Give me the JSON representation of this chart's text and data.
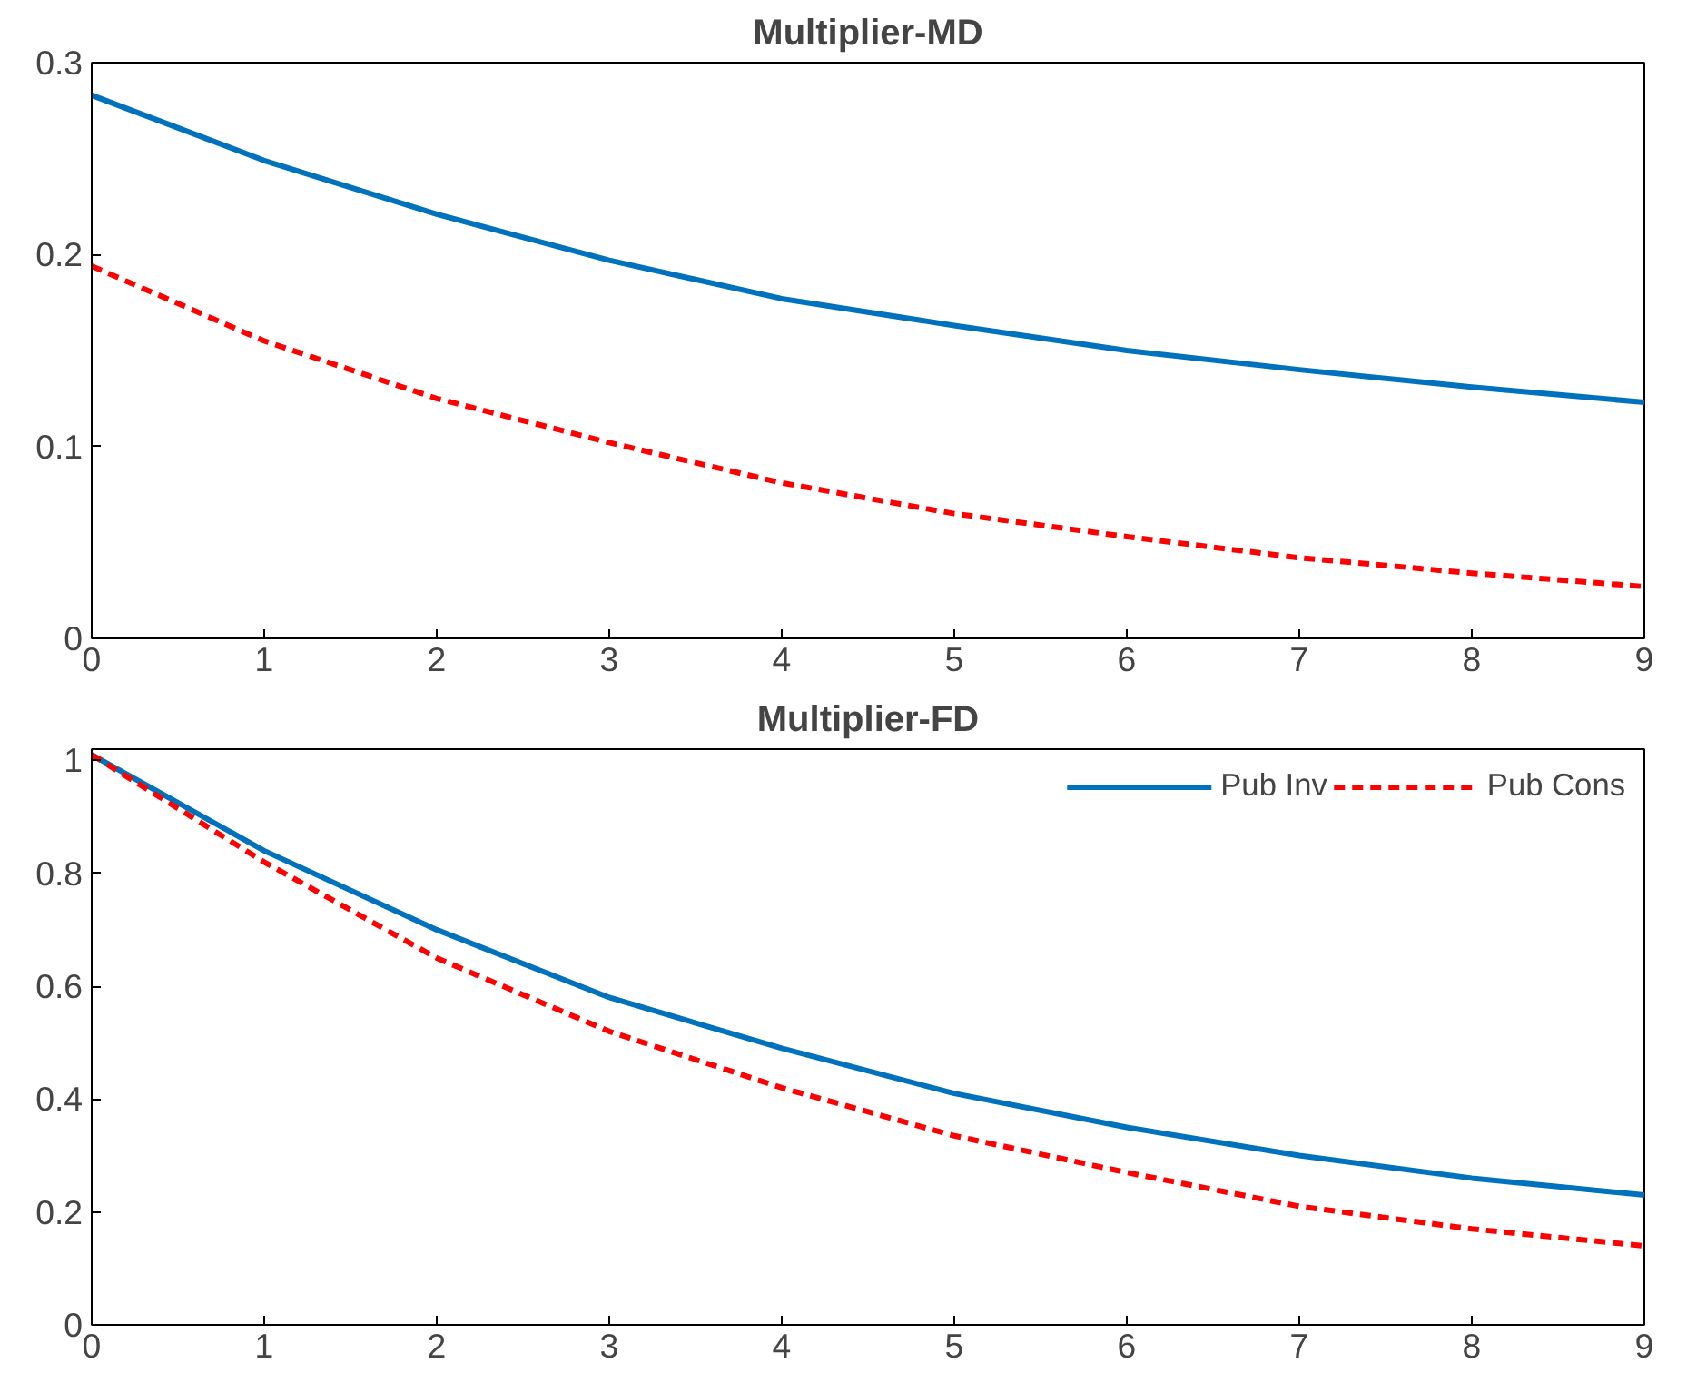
{
  "chart_data": [
    {
      "type": "line",
      "title": "Multiplier-MD",
      "x": [
        0,
        1,
        2,
        3,
        4,
        5,
        6,
        7,
        8,
        9
      ],
      "xlim": [
        0,
        9
      ],
      "xticks": [
        0,
        1,
        2,
        3,
        4,
        5,
        6,
        7,
        8,
        9
      ],
      "ylim": [
        0,
        0.3
      ],
      "yticks": [
        0,
        0.1,
        0.2,
        0.3
      ],
      "grid": false,
      "legend": false,
      "series": [
        {
          "color": "#0072bd",
          "line_style": "solid",
          "values": [
            0.283,
            0.249,
            0.221,
            0.197,
            0.177,
            0.163,
            0.15,
            0.14,
            0.131,
            0.123
          ]
        },
        {
          "color": "#ff0000",
          "line_style": "dashed",
          "values": [
            0.194,
            0.155,
            0.125,
            0.102,
            0.081,
            0.065,
            0.053,
            0.042,
            0.034,
            0.027
          ]
        }
      ]
    },
    {
      "type": "line",
      "title": "Multiplier-FD",
      "x": [
        0,
        1,
        2,
        3,
        4,
        5,
        6,
        7,
        8,
        9
      ],
      "xlim": [
        0,
        9
      ],
      "xticks": [
        0,
        1,
        2,
        3,
        4,
        5,
        6,
        7,
        8,
        9
      ],
      "ylim": [
        0,
        1.02
      ],
      "yticks": [
        0,
        0.2,
        0.4,
        0.6,
        0.8,
        1
      ],
      "grid": false,
      "legend": "top right",
      "series": [
        {
          "name": "Pub Inv",
          "color": "#0072bd",
          "line_style": "solid",
          "values": [
            1.01,
            0.84,
            0.7,
            0.58,
            0.49,
            0.41,
            0.35,
            0.3,
            0.26,
            0.23
          ]
        },
        {
          "name": "Pub Cons",
          "color": "#ff0000",
          "line_style": "dashed",
          "values": [
            1.01,
            0.82,
            0.65,
            0.52,
            0.42,
            0.335,
            0.27,
            0.21,
            0.17,
            0.14
          ]
        }
      ]
    }
  ]
}
